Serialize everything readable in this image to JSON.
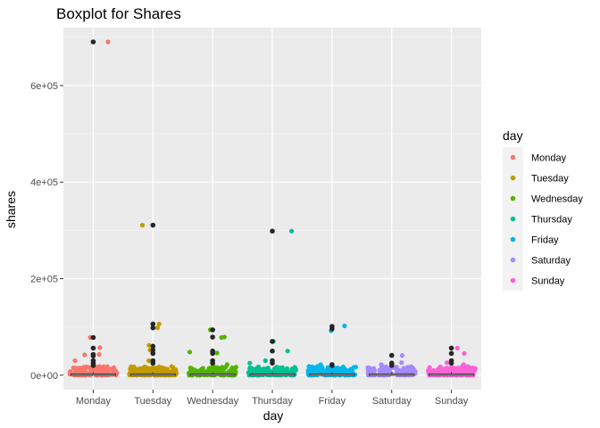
{
  "chart_data": {
    "type": "boxplot",
    "title": "Boxplot for Shares",
    "xlabel": "day",
    "ylabel": "shares",
    "ylim": [
      0,
      710000
    ],
    "yticks": [
      0,
      200000,
      400000,
      600000
    ],
    "ytick_labels": [
      "0e+00",
      "2e+05",
      "4e+05",
      "6e+05"
    ],
    "categories": [
      "Monday",
      "Tuesday",
      "Wednesday",
      "Thursday",
      "Friday",
      "Saturday",
      "Sunday"
    ],
    "legend_title": "day",
    "legend_position": "right",
    "grid": true,
    "colors": [
      "#F8766D",
      "#C49A00",
      "#53B400",
      "#00C094",
      "#00B6EB",
      "#A58AFF",
      "#FB61D7"
    ],
    "outlier_color": "#262626",
    "series": [
      {
        "name": "Monday",
        "outliers": [
          690400,
          78000,
          56000,
          43000,
          40000,
          30000,
          25000,
          20000
        ],
        "jitter_highlights": [
          690400,
          78000,
          57000,
          43000,
          42000,
          30000
        ]
      },
      {
        "name": "Tuesday",
        "outliers": [
          310800,
          106000,
          98000,
          60000,
          52000,
          45000,
          30000,
          25000
        ],
        "jitter_highlights": [
          310800,
          106000,
          98000,
          62000,
          52000,
          30000
        ]
      },
      {
        "name": "Wednesday",
        "outliers": [
          94000,
          79000,
          50000,
          45000,
          30000,
          25000
        ],
        "jitter_highlights": [
          94000,
          79000,
          78000,
          48000,
          46000,
          22000
        ]
      },
      {
        "name": "Thursday",
        "outliers": [
          298400,
          70000,
          50000,
          30000,
          25000
        ],
        "jitter_highlights": [
          298400,
          70000,
          50000,
          30000,
          25000
        ]
      },
      {
        "name": "Friday",
        "outliers": [
          101000,
          96000,
          22000,
          20000
        ],
        "jitter_highlights": [
          102000,
          92000,
          22000,
          18000
        ]
      },
      {
        "name": "Saturday",
        "outliers": [
          41000,
          25000,
          20000
        ],
        "jitter_highlights": [
          41000,
          26000,
          22000,
          15000
        ]
      },
      {
        "name": "Sunday",
        "outliers": [
          56000,
          45000,
          30000,
          25000
        ],
        "jitter_highlights": [
          56000,
          45000,
          26000,
          22000
        ]
      }
    ]
  }
}
